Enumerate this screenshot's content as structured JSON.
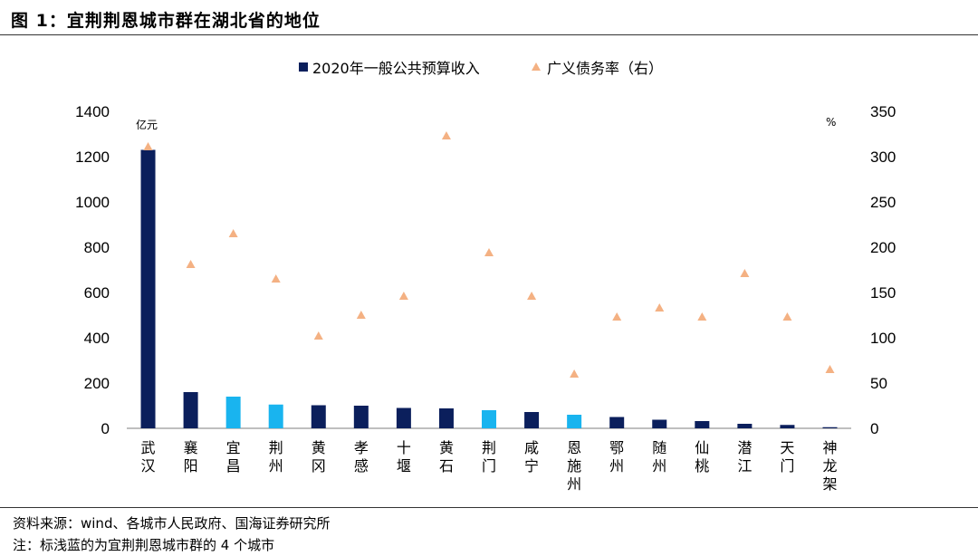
{
  "figure": {
    "title": "图 1：宜荆荆恩城市群在湖北省的地位",
    "source": "资料来源：wind、各城市人民政府、国海证券研究所",
    "footnote": "注：标浅蓝的为宜荆荆恩城市群的 4 个城市"
  },
  "colors": {
    "dark_bar": "#0b1f5c",
    "light_bar": "#19b4ef",
    "marker": "#f4b183"
  },
  "chart_data": {
    "type": "bar",
    "categories": [
      "武汉",
      "襄阳",
      "宜昌",
      "荆州",
      "黄冈",
      "孝感",
      "十堰",
      "黄石",
      "荆门",
      "咸宁",
      "恩施州",
      "鄂州",
      "随州",
      "仙桃",
      "潜江",
      "天门",
      "神龙架"
    ],
    "series": [
      {
        "name": "2020年一般公共预算收入",
        "type": "bar",
        "axis": "left",
        "values": [
          1230,
          160,
          140,
          105,
          102,
          100,
          90,
          88,
          80,
          72,
          60,
          50,
          38,
          32,
          20,
          15,
          5
        ],
        "highlight": [
          false,
          false,
          true,
          true,
          false,
          false,
          false,
          false,
          true,
          false,
          true,
          false,
          false,
          false,
          false,
          false,
          false
        ]
      },
      {
        "name": "广义债务率（右）",
        "type": "scatter",
        "marker": "triangle",
        "axis": "right",
        "values": [
          311,
          181,
          215,
          165,
          102,
          125,
          146,
          323,
          194,
          146,
          60,
          123,
          133,
          123,
          171,
          123,
          65
        ]
      }
    ],
    "y_left": {
      "min": 0,
      "max": 1400,
      "ticks": [
        0,
        200,
        400,
        600,
        800,
        1000,
        1200,
        1400
      ],
      "unit": "亿元"
    },
    "y_right": {
      "min": 0,
      "max": 350,
      "ticks": [
        0,
        50,
        100,
        150,
        200,
        250,
        300,
        350
      ],
      "unit": "%"
    },
    "legend_position": "top-center",
    "grid": false
  }
}
